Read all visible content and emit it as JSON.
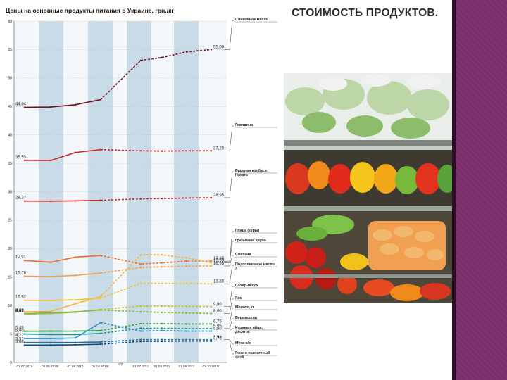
{
  "slide": {
    "title": "СТОИМОСТЬ ПРОДУКТОВ."
  },
  "photo": {
    "alt": "Полки супермаркета с овощами и фруктами"
  },
  "colors": {
    "accent_bar": "#7a2f6a",
    "band": "#c9dbe6"
  },
  "chart_data": {
    "type": "line",
    "title": "Цены на основные продукты питания в Украине, грн./кг",
    "xlabel": "",
    "ylabel": "",
    "ylim": [
      0,
      60
    ],
    "yticks": [
      0,
      5,
      10,
      15,
      20,
      25,
      30,
      35,
      40,
      45,
      50,
      55,
      60
    ],
    "grid": true,
    "categories": [
      "01.07.2010",
      "01.08.2010г.",
      "01.09.2010",
      "01.10.2010г.",
      "01.07.2011",
      "01.08.2011",
      "01.09.2011",
      "01.10.2011г."
    ],
    "legend_placement": "right",
    "series": [
      {
        "name": "Сливочное масло",
        "color": "#6e1020",
        "values": [
          44.84,
          44.9,
          45.3,
          46.2,
          53.1,
          53.6,
          54.6,
          55.0
        ],
        "start_label": "44,84",
        "end_label": "55,00"
      },
      {
        "name": "Говядина",
        "color": "#c6282c",
        "values": [
          35.53,
          35.5,
          36.9,
          37.4,
          37.2,
          37.15,
          37.2,
          37.2
        ],
        "start_label": "35,53",
        "end_label": "37,20"
      },
      {
        "name": "Вареная колбаса I сорта",
        "color": "#c6282c",
        "values": [
          28.37,
          28.35,
          28.4,
          28.5,
          28.75,
          28.8,
          28.9,
          28.95
        ],
        "start_label": "28,37",
        "end_label": "28,95"
      },
      {
        "name": "Птица (куры)",
        "color": "#ef6b2a",
        "values": [
          17.91,
          17.6,
          18.5,
          18.8,
          17.3,
          17.5,
          17.8,
          17.8
        ],
        "start_label": "17,91",
        "end_label": "17,80"
      },
      {
        "name": "Гречневая крупа",
        "color": "#f3b63a",
        "values": [
          8.9,
          9.0,
          10.3,
          11.6,
          18.9,
          18.9,
          18.4,
          17.5
        ],
        "start_label": "",
        "end_label": "17,50"
      },
      {
        "name": "Сметана",
        "color": "#f0a24a",
        "values": [
          15.16,
          15.1,
          15.3,
          15.7,
          16.7,
          16.8,
          16.9,
          16.95
        ],
        "start_label": "15,16",
        "end_label": "16,95"
      },
      {
        "name": "Подсолнечное масло, л",
        "color": "#f2c23c",
        "values": [
          10.92,
          10.9,
          11.0,
          11.3,
          13.9,
          13.9,
          13.9,
          13.8
        ],
        "start_label": "10,92",
        "end_label": "13,80"
      },
      {
        "name": "Сахар-песок",
        "color": "#c9b83a",
        "values": [
          8.47,
          8.6,
          8.8,
          9.3,
          9.9,
          9.9,
          9.85,
          9.8
        ],
        "start_label": "8,47",
        "end_label": "9,80"
      },
      {
        "name": "Рис",
        "color": "#7dbb4a",
        "values": [
          8.61,
          8.7,
          8.9,
          9.2,
          8.9,
          8.8,
          8.7,
          8.6
        ],
        "start_label": "8,61",
        "end_label": "8,60"
      },
      {
        "name": "Молоко, л",
        "color": "#39a04b",
        "values": [
          5.48,
          5.5,
          5.5,
          5.6,
          6.8,
          6.8,
          6.75,
          6.75
        ],
        "start_label": "5,48",
        "end_label": "6,75"
      },
      {
        "name": "Вермишель",
        "color": "#1f9a8c",
        "values": [
          5.0,
          4.9,
          4.9,
          5.1,
          6.0,
          6.0,
          5.95,
          5.95
        ],
        "start_label": "5,00",
        "end_label": "5,95"
      },
      {
        "name": "Куриные яйца, десяток",
        "color": "#2a8fc2",
        "values": [
          4.22,
          4.2,
          4.3,
          7.0,
          5.5,
          5.6,
          5.5,
          5.5
        ],
        "start_label": "4,22",
        "end_label": "5,50"
      },
      {
        "name": "Мука в/с",
        "color": "#1f6fa8",
        "values": [
          3.51,
          3.5,
          3.5,
          3.6,
          4.0,
          4.0,
          4.0,
          3.98
        ],
        "start_label": "3,51",
        "end_label": "3,98"
      },
      {
        "name": "Ржано-пшеничный хлеб",
        "color": "#124a7a",
        "values": [
          3.06,
          3.06,
          3.1,
          3.2,
          3.7,
          3.7,
          3.75,
          3.75
        ],
        "start_label": "3,06",
        "end_label": "3,75"
      }
    ],
    "extra_start_labels": [
      "9,09"
    ],
    "gap_marker": "1/2"
  }
}
